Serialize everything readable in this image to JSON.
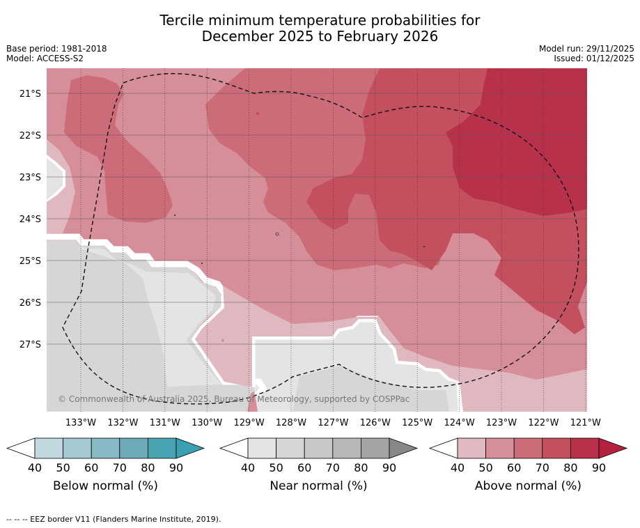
{
  "title_line1": "Tercile minimum temperature probabilities for",
  "title_line2": "December 2025 to February 2026",
  "left_meta": {
    "base_period": "Base period: 1981-2018",
    "model": "Model: ACCESS-S2"
  },
  "right_meta": {
    "model_run": "Model run: 29/11/2025",
    "issued": "Issued: 01/12/2025"
  },
  "map": {
    "latitude_labels": [
      "21°S",
      "22°S",
      "23°S",
      "24°S",
      "25°S",
      "26°S",
      "27°S"
    ],
    "longitude_labels": [
      "133°W",
      "132°W",
      "131°W",
      "130°W",
      "129°W",
      "128°W",
      "127°W",
      "126°W",
      "125°W",
      "124°W",
      "123°W",
      "122°W",
      "121°W"
    ],
    "copyright": "© Commonwealth of Australia 2025, Bureau of Meteorology, supported by COSPPac"
  },
  "colorbars": [
    {
      "label": "Below normal (%)",
      "ticks": [
        "40",
        "50",
        "60",
        "70",
        "80",
        "90"
      ],
      "colors": [
        "#ffffff",
        "#c0d8de",
        "#a6cad1",
        "#89b9c4",
        "#6caab7",
        "#49a3b2",
        "#3a9fb0"
      ]
    },
    {
      "label": "Near normal (%)",
      "ticks": [
        "40",
        "50",
        "60",
        "70",
        "80",
        "90"
      ],
      "colors": [
        "#ffffff",
        "#e4e4e4",
        "#d6d6d6",
        "#c8c8c8",
        "#b7b7b7",
        "#a4a4a4",
        "#888888"
      ]
    },
    {
      "label": "Above normal (%)",
      "ticks": [
        "40",
        "50",
        "60",
        "70",
        "80",
        "90"
      ],
      "colors": [
        "#ffffff",
        "#e0b8bf",
        "#d68f98",
        "#cc6c78",
        "#c4505f",
        "#b8314a",
        "#b3213e"
      ]
    }
  ],
  "footer": "--  --  -- EEZ border V11 (Flanders Marine Institute, 2019)."
}
